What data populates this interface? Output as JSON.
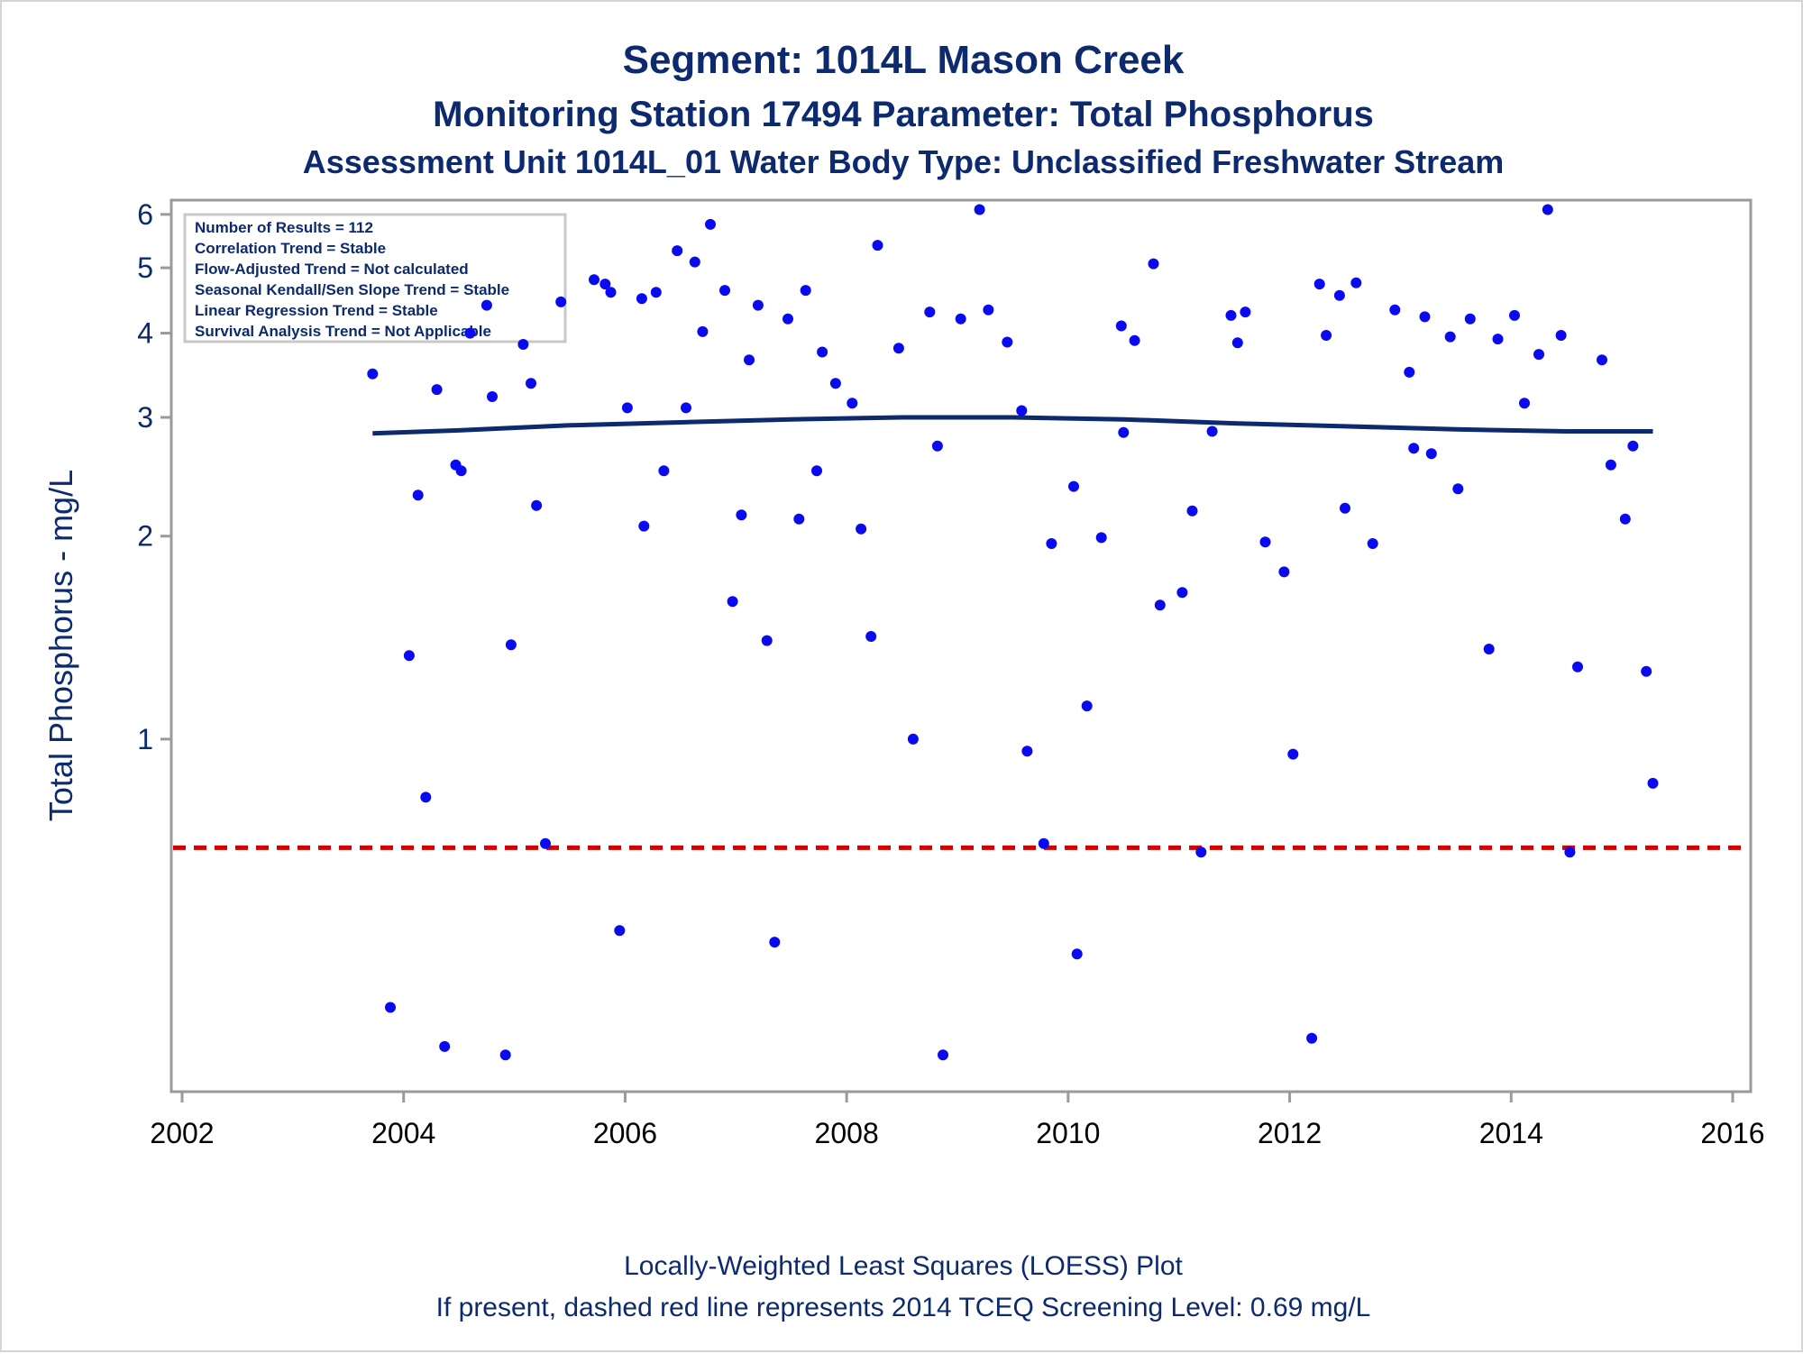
{
  "titles": {
    "line1": "Segment: 1014L  Mason Creek",
    "line2": "Monitoring Station 17494 Parameter: Total Phosphorus",
    "line3": "Assessment Unit 1014L_01   Water Body Type: Unclassified Freshwater Stream"
  },
  "footnotes": {
    "line1": "Locally-Weighted Least Squares (LOESS) Plot",
    "line2": "If present, dashed red line represents 2014 TCEQ Screening Level: 0.69 mg/L"
  },
  "stats_box": [
    "Number of Results = 112",
    "Correlation Trend = Stable",
    "Flow-Adjusted Trend = Not calculated",
    "Seasonal Kendall/Sen Slope Trend = Stable",
    "Linear Regression Trend = Stable",
    "Survival Analysis Trend = Not Applicable"
  ],
  "colors": {
    "points": "#0a0af0",
    "loess": "#0d2a6e",
    "screening": "#d40000",
    "text": "#0d2a6e"
  },
  "chart_data": {
    "type": "scatter",
    "ylabel": "Total Phosphorus - mg/L",
    "xlabel": "",
    "xlim": [
      2002,
      2016
    ],
    "ylim": [
      0.3,
      6.3
    ],
    "yscale": "log",
    "xticks": [
      "2002",
      "2004",
      "2006",
      "2008",
      "2010",
      "2012",
      "2014",
      "2016"
    ],
    "yticks": [
      "1",
      "2",
      "3",
      "4",
      "5",
      "6"
    ],
    "grid": false,
    "screening_level": 0.69,
    "points": [
      [
        2003.72,
        3.48
      ],
      [
        2003.88,
        0.4
      ],
      [
        2004.05,
        1.33
      ],
      [
        2004.13,
        2.3
      ],
      [
        2004.2,
        0.82
      ],
      [
        2004.3,
        3.3
      ],
      [
        2004.37,
        0.35
      ],
      [
        2004.47,
        2.55
      ],
      [
        2004.52,
        2.5
      ],
      [
        2004.6,
        4.0
      ],
      [
        2004.75,
        4.4
      ],
      [
        2004.8,
        3.22
      ],
      [
        2004.92,
        0.34
      ],
      [
        2004.97,
        1.38
      ],
      [
        2005.08,
        3.85
      ],
      [
        2005.15,
        3.37
      ],
      [
        2005.2,
        2.22
      ],
      [
        2005.28,
        0.7
      ],
      [
        2005.42,
        4.45
      ],
      [
        2005.72,
        4.8
      ],
      [
        2005.82,
        4.73
      ],
      [
        2005.87,
        4.6
      ],
      [
        2005.95,
        0.52
      ],
      [
        2006.02,
        3.1
      ],
      [
        2006.15,
        4.5
      ],
      [
        2006.17,
        2.07
      ],
      [
        2006.28,
        4.6
      ],
      [
        2006.35,
        2.5
      ],
      [
        2006.47,
        5.3
      ],
      [
        2006.55,
        3.1
      ],
      [
        2006.63,
        5.1
      ],
      [
        2006.7,
        4.02
      ],
      [
        2006.77,
        5.8
      ],
      [
        2006.9,
        4.63
      ],
      [
        2006.97,
        1.6
      ],
      [
        2007.05,
        2.15
      ],
      [
        2007.12,
        3.65
      ],
      [
        2007.2,
        4.4
      ],
      [
        2007.28,
        1.4
      ],
      [
        2007.35,
        0.5
      ],
      [
        2007.47,
        4.2
      ],
      [
        2007.57,
        2.12
      ],
      [
        2007.63,
        4.63
      ],
      [
        2007.73,
        2.5
      ],
      [
        2007.78,
        3.75
      ],
      [
        2007.9,
        3.37
      ],
      [
        2008.05,
        3.15
      ],
      [
        2008.13,
        2.05
      ],
      [
        2008.22,
        1.42
      ],
      [
        2008.28,
        5.4
      ],
      [
        2008.47,
        3.8
      ],
      [
        2008.6,
        1.0
      ],
      [
        2008.75,
        4.3
      ],
      [
        2008.82,
        2.72
      ],
      [
        2008.87,
        0.34
      ],
      [
        2009.03,
        4.2
      ],
      [
        2009.2,
        6.1
      ],
      [
        2009.28,
        4.33
      ],
      [
        2009.45,
        3.88
      ],
      [
        2009.58,
        3.07
      ],
      [
        2009.63,
        0.96
      ],
      [
        2009.78,
        0.7
      ],
      [
        2009.85,
        1.95
      ],
      [
        2010.05,
        2.37
      ],
      [
        2010.08,
        0.48
      ],
      [
        2010.17,
        1.12
      ],
      [
        2010.3,
        1.99
      ],
      [
        2010.48,
        4.1
      ],
      [
        2010.5,
        2.85
      ],
      [
        2010.6,
        3.9
      ],
      [
        2010.77,
        5.07
      ],
      [
        2010.83,
        1.58
      ],
      [
        2011.03,
        1.65
      ],
      [
        2011.12,
        2.18
      ],
      [
        2011.2,
        0.68
      ],
      [
        2011.3,
        2.86
      ],
      [
        2011.47,
        4.25
      ],
      [
        2011.53,
        3.87
      ],
      [
        2011.6,
        4.3
      ],
      [
        2011.78,
        1.96
      ],
      [
        2011.95,
        1.77
      ],
      [
        2012.03,
        0.95
      ],
      [
        2012.2,
        0.36
      ],
      [
        2012.27,
        4.73
      ],
      [
        2012.33,
        3.97
      ],
      [
        2012.45,
        4.55
      ],
      [
        2012.5,
        2.2
      ],
      [
        2012.6,
        4.75
      ],
      [
        2012.75,
        1.95
      ],
      [
        2012.95,
        4.33
      ],
      [
        2013.08,
        3.5
      ],
      [
        2013.12,
        2.7
      ],
      [
        2013.22,
        4.23
      ],
      [
        2013.28,
        2.65
      ],
      [
        2013.45,
        3.95
      ],
      [
        2013.52,
        2.35
      ],
      [
        2013.63,
        4.2
      ],
      [
        2013.8,
        1.36
      ],
      [
        2013.88,
        3.92
      ],
      [
        2014.03,
        4.25
      ],
      [
        2014.12,
        3.15
      ],
      [
        2014.25,
        3.72
      ],
      [
        2014.33,
        6.1
      ],
      [
        2014.45,
        3.97
      ],
      [
        2014.53,
        0.68
      ],
      [
        2014.6,
        1.28
      ],
      [
        2014.82,
        3.65
      ],
      [
        2014.9,
        2.55
      ],
      [
        2015.03,
        2.12
      ],
      [
        2015.1,
        2.72
      ],
      [
        2015.22,
        1.26
      ],
      [
        2015.28,
        0.86
      ]
    ],
    "loess": [
      [
        2003.72,
        2.84
      ],
      [
        2004.5,
        2.87
      ],
      [
        2005.5,
        2.92
      ],
      [
        2006.5,
        2.95
      ],
      [
        2007.5,
        2.98
      ],
      [
        2008.5,
        3.0
      ],
      [
        2009.5,
        3.0
      ],
      [
        2010.5,
        2.98
      ],
      [
        2011.5,
        2.94
      ],
      [
        2012.5,
        2.91
      ],
      [
        2013.5,
        2.88
      ],
      [
        2014.5,
        2.86
      ],
      [
        2015.28,
        2.86
      ]
    ]
  }
}
